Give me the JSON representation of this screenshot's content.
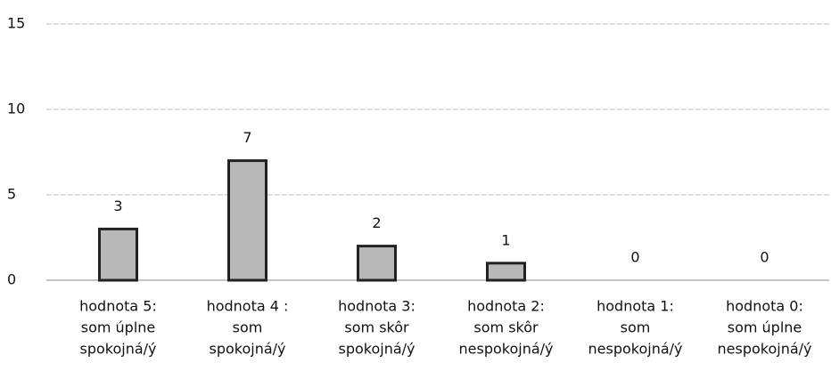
{
  "chart_data": {
    "type": "bar",
    "categories": [
      [
        "hodnota 5:",
        "som úplne",
        "spokojná/ý"
      ],
      [
        "hodnota 4 :",
        "som",
        "spokojná/ý"
      ],
      [
        "hodnota 3:",
        "som skôr",
        "spokojná/ý"
      ],
      [
        "hodnota 2:",
        "som skôr",
        "nespokojná/ý"
      ],
      [
        "hodnota 1:",
        "som",
        "nespokojná/ý"
      ],
      [
        "hodnota 0:",
        "som úplne",
        "nespokojná/ý"
      ]
    ],
    "values": [
      3,
      7,
      2,
      1,
      0,
      0
    ],
    "color": "#b8b8b8",
    "ylim": [
      0,
      15
    ],
    "yticks": [
      0,
      5,
      10,
      15
    ],
    "grid": true
  }
}
